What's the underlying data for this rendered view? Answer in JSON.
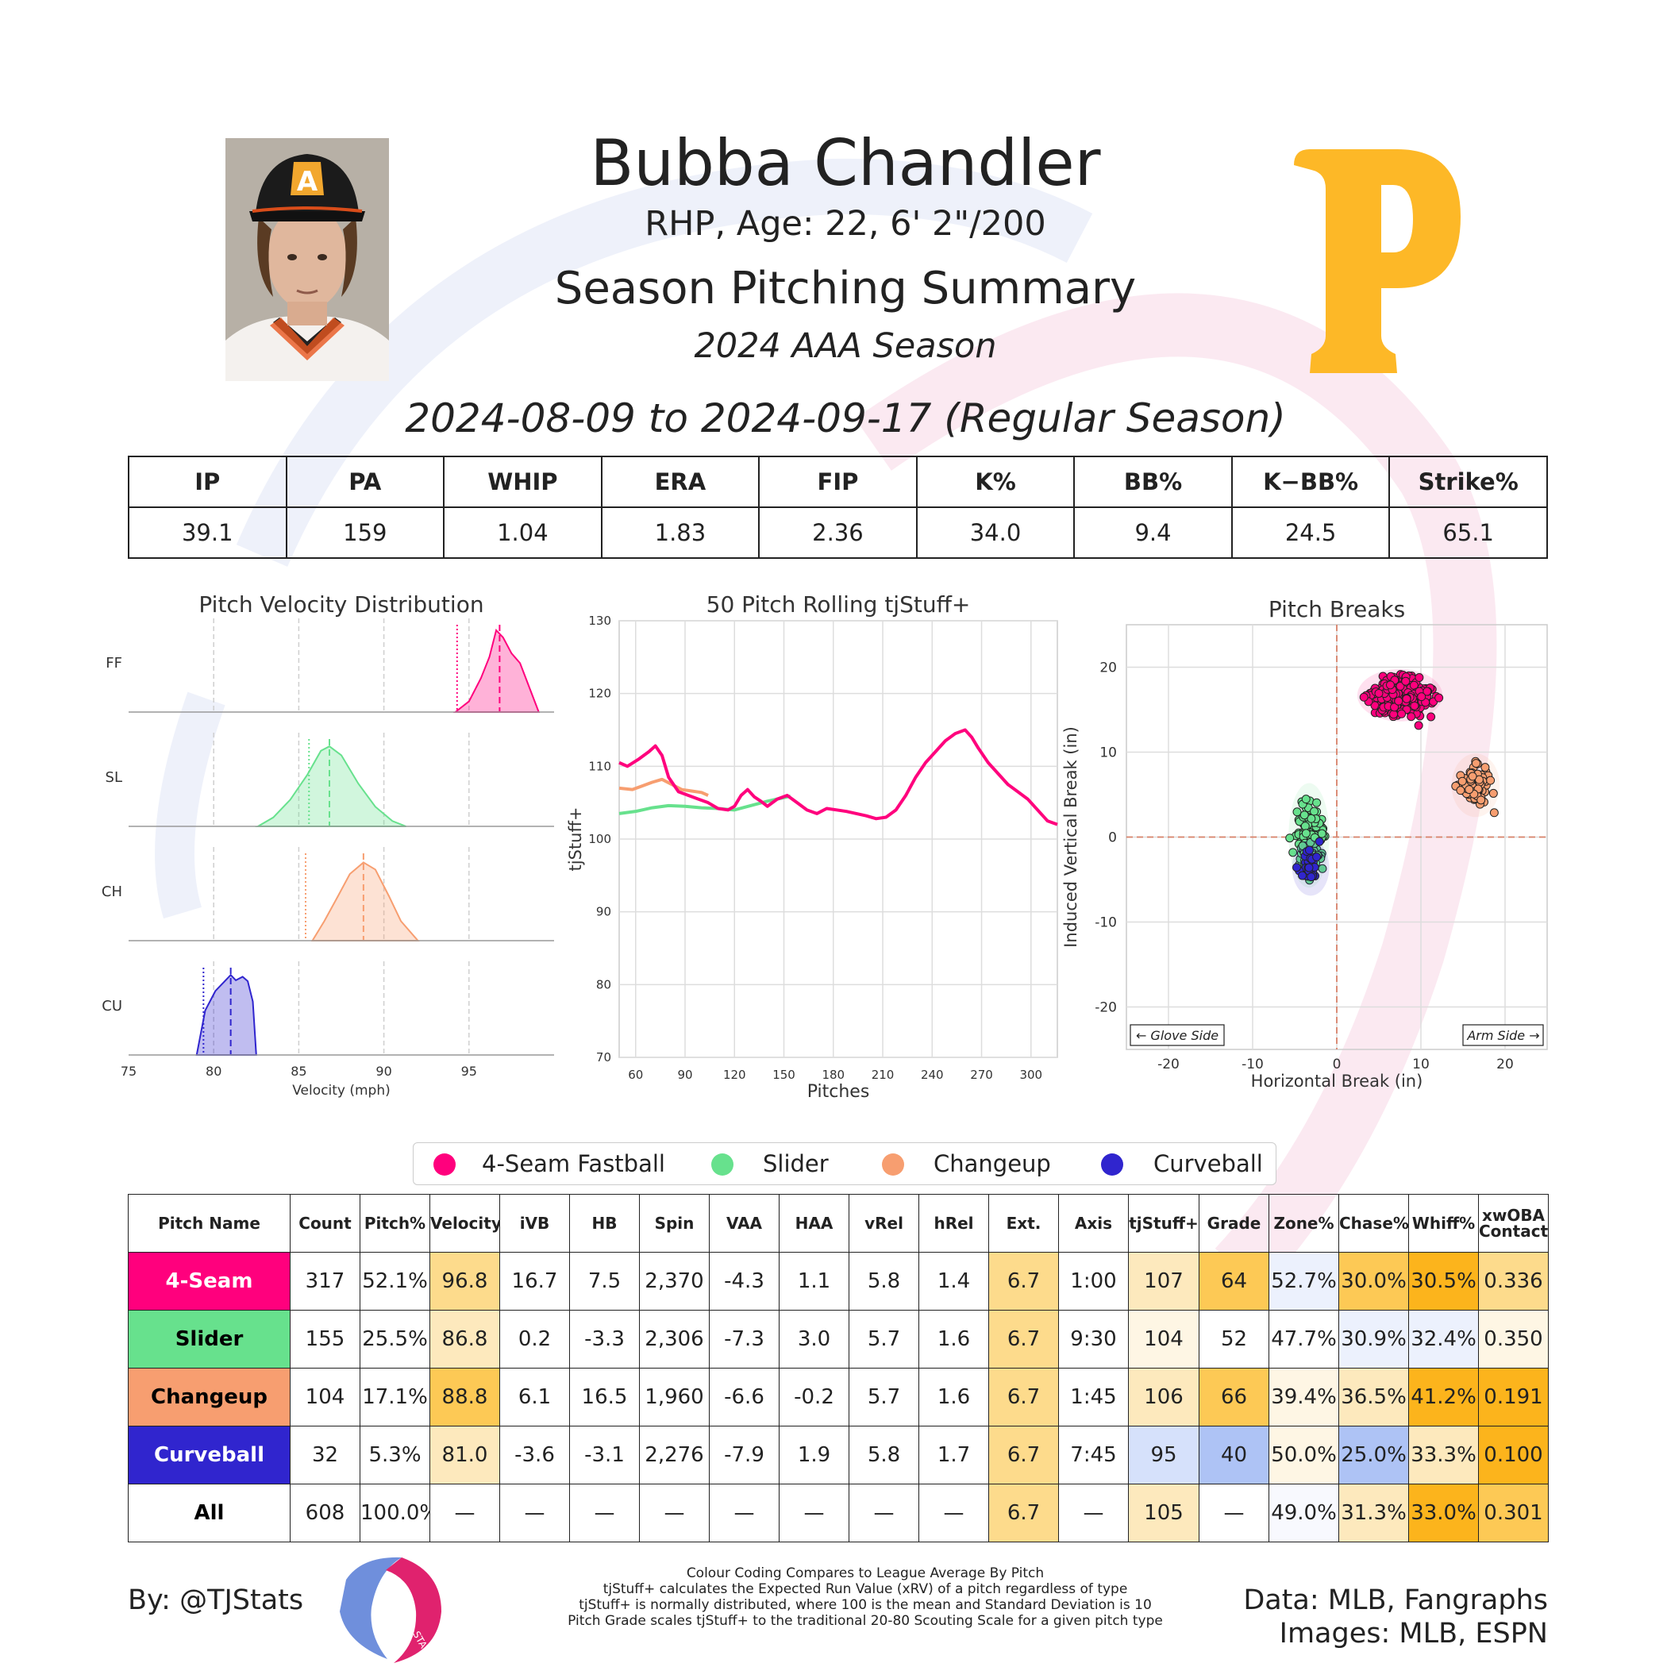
{
  "header": {
    "name": "Bubba Chandler",
    "bio": "RHP, Age: 22, 6' 2\"/200",
    "title": "Season Pitching Summary",
    "season": "2024 AAA Season",
    "date_range": "2024-08-09 to 2024-09-17 (Regular Season)"
  },
  "team_logo": {
    "letter": "P",
    "color": "#FDB827"
  },
  "summary": {
    "headers": [
      "IP",
      "PA",
      "WHIP",
      "ERA",
      "FIP",
      "K%",
      "BB%",
      "K−BB%",
      "Strike%"
    ],
    "values": [
      "39.1",
      "159",
      "1.04",
      "1.83",
      "2.36",
      "34.0",
      "9.4",
      "24.5",
      "65.1"
    ]
  },
  "colors": {
    "ff": "#ff007d",
    "sl": "#67e18d",
    "ch": "#f79e70",
    "cu": "#3025ce",
    "hi1": "#fcb41c",
    "hi2": "#fdc955",
    "hi3": "#fddb8c",
    "hi4": "#fde9bd",
    "hi5": "#fef6e4",
    "lo1": "#aec3f5",
    "lo2": "#d6e1fb",
    "lo3": "#ecf1fd"
  },
  "chart_data": [
    {
      "type": "area",
      "title": "Pitch Velocity Distribution",
      "xlabel": "Velocity (mph)",
      "ylabel": "",
      "xlim": [
        75,
        100
      ],
      "xticks": [
        "75",
        "80",
        "85",
        "90",
        "95"
      ],
      "series": [
        {
          "name": "FF",
          "color": "#ff007d",
          "mean": 96.8,
          "league": 94.3,
          "x": [
            94.2,
            95.0,
            95.7,
            96.2,
            96.6,
            97.0,
            97.5,
            98.0,
            98.5,
            99.1
          ],
          "y": [
            0.0,
            0.12,
            0.38,
            0.62,
            0.92,
            0.84,
            0.66,
            0.55,
            0.3,
            0.0
          ]
        },
        {
          "name": "SL",
          "color": "#67e18d",
          "mean": 86.8,
          "league": 85.6,
          "x": [
            82.6,
            83.5,
            84.5,
            85.5,
            86.3,
            86.8,
            87.5,
            88.5,
            89.5,
            90.5,
            91.3
          ],
          "y": [
            0.0,
            0.1,
            0.3,
            0.58,
            0.85,
            0.9,
            0.8,
            0.48,
            0.22,
            0.06,
            0.0
          ]
        },
        {
          "name": "CH",
          "color": "#f79e70",
          "mean": 88.8,
          "league": 85.4,
          "x": [
            85.8,
            86.5,
            87.3,
            88.0,
            88.8,
            89.5,
            90.3,
            91.0,
            92.0
          ],
          "y": [
            0.0,
            0.22,
            0.5,
            0.75,
            0.88,
            0.8,
            0.5,
            0.22,
            0.0
          ]
        },
        {
          "name": "CU",
          "color": "#3025ce",
          "mean": 81.0,
          "league": 79.4,
          "x": [
            79.0,
            79.5,
            80.1,
            80.6,
            81.0,
            81.3,
            81.7,
            82.0,
            82.3,
            82.5
          ],
          "y": [
            0.0,
            0.5,
            0.72,
            0.82,
            0.9,
            0.84,
            0.88,
            0.83,
            0.6,
            0.0
          ]
        }
      ]
    },
    {
      "type": "line",
      "title": "50 Pitch Rolling tjStuff+",
      "xlabel": "Pitches",
      "ylabel": "tjStuff+",
      "xlim": [
        50,
        316
      ],
      "ylim": [
        70,
        130
      ],
      "xticks": [
        "60",
        "90",
        "120",
        "150",
        "180",
        "210",
        "240",
        "270",
        "300"
      ],
      "yticks": [
        "70",
        "80",
        "90",
        "100",
        "110",
        "120",
        "130"
      ],
      "series": [
        {
          "name": "FF",
          "color": "#ff007d",
          "x": [
            50,
            55,
            62,
            68,
            72,
            76,
            80,
            86,
            92,
            98,
            104,
            110,
            116,
            120,
            124,
            128,
            132,
            136,
            140,
            146,
            152,
            158,
            164,
            170,
            176,
            182,
            188,
            194,
            200,
            206,
            212,
            218,
            224,
            230,
            236,
            242,
            248,
            254,
            260,
            264,
            268,
            274,
            280,
            286,
            292,
            298,
            304,
            310,
            316
          ],
          "y": [
            110.5,
            110.0,
            111.0,
            112.0,
            112.8,
            111.5,
            108.5,
            106.5,
            106.0,
            105.5,
            105.0,
            104.2,
            104.0,
            104.5,
            106.0,
            106.8,
            105.8,
            105.2,
            104.5,
            105.5,
            106.0,
            105.0,
            104.0,
            103.5,
            104.2,
            104.0,
            103.8,
            103.5,
            103.2,
            102.8,
            103.0,
            104.0,
            106.0,
            108.5,
            110.5,
            112.0,
            113.5,
            114.5,
            115.0,
            114.0,
            112.5,
            110.5,
            109.0,
            107.5,
            106.5,
            105.5,
            104.0,
            102.5,
            102.0
          ]
        },
        {
          "name": "SL",
          "color": "#67e18d",
          "x": [
            50,
            60,
            70,
            80,
            90,
            100,
            110,
            120,
            130,
            140,
            150,
            154
          ],
          "y": [
            103.5,
            103.8,
            104.3,
            104.6,
            104.5,
            104.3,
            104.2,
            104.0,
            104.6,
            105.2,
            105.7,
            105.9
          ]
        },
        {
          "name": "CH",
          "color": "#f79e70",
          "x": [
            50,
            58,
            64,
            70,
            76,
            82,
            88,
            94,
            100,
            104
          ],
          "y": [
            107.0,
            106.8,
            107.3,
            107.8,
            108.2,
            107.5,
            106.8,
            106.6,
            106.4,
            106.0
          ]
        }
      ]
    },
    {
      "type": "scatter",
      "title": "Pitch Breaks",
      "xlabel": "Horizontal Break (in)",
      "ylabel": "Induced Vertical Break (in)",
      "xlim": [
        -25,
        25
      ],
      "ylim": [
        -25,
        25
      ],
      "xticks": [
        "-20",
        "-10",
        "0",
        "10",
        "20"
      ],
      "yticks": [
        "-20",
        "-10",
        "0",
        "10",
        "20"
      ],
      "annotations": [
        "← Glove Side",
        "Arm Side →"
      ],
      "series": [
        {
          "name": "FF",
          "color": "#ff007d",
          "count": 317,
          "center": [
            7.5,
            16.7
          ],
          "spread": [
            2.3,
            1.4
          ]
        },
        {
          "name": "SL",
          "color": "#67e18d",
          "count": 155,
          "center": [
            -3.3,
            0.2
          ],
          "spread": [
            1.1,
            2.8
          ]
        },
        {
          "name": "CH",
          "color": "#f79e70",
          "count": 104,
          "center": [
            16.5,
            6.1
          ],
          "spread": [
            1.3,
            1.7
          ]
        },
        {
          "name": "CU",
          "color": "#3025ce",
          "count": 32,
          "center": [
            -3.1,
            -3.6
          ],
          "spread": [
            1.0,
            1.5
          ]
        }
      ]
    }
  ],
  "legend": [
    {
      "label": "4-Seam Fastball",
      "color": "#ff007d"
    },
    {
      "label": "Slider",
      "color": "#67e18d"
    },
    {
      "label": "Changeup",
      "color": "#f79e70"
    },
    {
      "label": "Curveball",
      "color": "#3025ce"
    }
  ],
  "pitch_table": {
    "headers": [
      "Pitch Name",
      "Count",
      "Pitch%",
      "Velocity",
      "iVB",
      "HB",
      "Spin",
      "VAA",
      "HAA",
      "vRel",
      "hRel",
      "Ext.",
      "Axis",
      "tjStuff+",
      "Grade",
      "Zone%",
      "Chase%",
      "Whiff%",
      "xwOBA Contact"
    ],
    "rows": [
      {
        "name": "4-Seam",
        "name_bg": "#ff007d",
        "name_color": "#ffffff",
        "cells": [
          "317",
          "52.1%",
          "96.8",
          "16.7",
          "7.5",
          "2,370",
          "-4.3",
          "1.1",
          "5.8",
          "1.4",
          "6.7",
          "1:00",
          "107",
          "64",
          "52.7%",
          "30.0%",
          "30.5%",
          "0.336"
        ],
        "bg": [
          "",
          "",
          "#fddb8c",
          "",
          "",
          "",
          "",
          "",
          "",
          "",
          "#fddb8c",
          "",
          "#fde9bd",
          "#fdc955",
          "#ecf1fd",
          "#fdc955",
          "#fcb41c",
          "#fddb8c"
        ]
      },
      {
        "name": "Slider",
        "name_bg": "#67e18d",
        "name_color": "#000000",
        "cells": [
          "155",
          "25.5%",
          "86.8",
          "0.2",
          "-3.3",
          "2,306",
          "-7.3",
          "3.0",
          "5.7",
          "1.6",
          "6.7",
          "9:30",
          "104",
          "52",
          "47.7%",
          "30.9%",
          "32.4%",
          "0.350"
        ],
        "bg": [
          "",
          "",
          "#fde9bd",
          "",
          "",
          "",
          "",
          "",
          "",
          "",
          "#fddb8c",
          "",
          "#fef6e4",
          "",
          "",
          "#ecf1fd",
          "#ecf1fd",
          "#fef6e4"
        ]
      },
      {
        "name": "Changeup",
        "name_bg": "#f79e70",
        "name_color": "#000000",
        "cells": [
          "104",
          "17.1%",
          "88.8",
          "6.1",
          "16.5",
          "1,960",
          "-6.6",
          "-0.2",
          "5.7",
          "1.6",
          "6.7",
          "1:45",
          "106",
          "66",
          "39.4%",
          "36.5%",
          "41.2%",
          "0.191"
        ],
        "bg": [
          "",
          "",
          "#fdc955",
          "",
          "",
          "",
          "",
          "",
          "",
          "",
          "#fddb8c",
          "",
          "#fde9bd",
          "#fdc955",
          "#fef6e4",
          "#fde9bd",
          "#fcb41c",
          "#fcb41c"
        ]
      },
      {
        "name": "Curveball",
        "name_bg": "#3025ce",
        "name_color": "#ffffff",
        "cells": [
          "32",
          "5.3%",
          "81.0",
          "-3.6",
          "-3.1",
          "2,276",
          "-7.9",
          "1.9",
          "5.8",
          "1.7",
          "6.7",
          "7:45",
          "95",
          "40",
          "50.0%",
          "25.0%",
          "33.3%",
          "0.100"
        ],
        "bg": [
          "",
          "",
          "#fde9bd",
          "",
          "",
          "",
          "",
          "",
          "",
          "",
          "#fddb8c",
          "",
          "#d6e1fb",
          "#aec3f5",
          "#fef6e4",
          "#aec3f5",
          "#fde9bd",
          "#fcb41c"
        ]
      },
      {
        "name": "All",
        "name_bg": "#ffffff",
        "name_color": "#000000",
        "cells": [
          "608",
          "100.0%",
          "—",
          "—",
          "—",
          "—",
          "—",
          "—",
          "—",
          "—",
          "6.7",
          "—",
          "105",
          "—",
          "49.0%",
          "31.3%",
          "33.0%",
          "0.301"
        ],
        "bg": [
          "",
          "",
          "",
          "",
          "",
          "",
          "",
          "",
          "",
          "",
          "#fddb8c",
          "",
          "#fde9bd",
          "",
          "#f8f9fe",
          "#fde9bd",
          "#fcb41c",
          "#fdc955"
        ]
      }
    ]
  },
  "footer": {
    "by": "By: @TJStats",
    "notes": [
      "Colour Coding Compares to League Average By Pitch",
      "tjStuff+ calculates the Expected Run Value (xRV) of a pitch regardless of type",
      "tjStuff+ is normally distributed, where 100 is the mean and Standard Deviation is 10",
      "Pitch Grade scales tjStuff+ to the traditional 20-80 Scouting Scale for a given pitch type"
    ],
    "data_credit": "Data: MLB, Fangraphs",
    "image_credit": "Images: MLB, ESPN",
    "logo_text": "STATS"
  }
}
